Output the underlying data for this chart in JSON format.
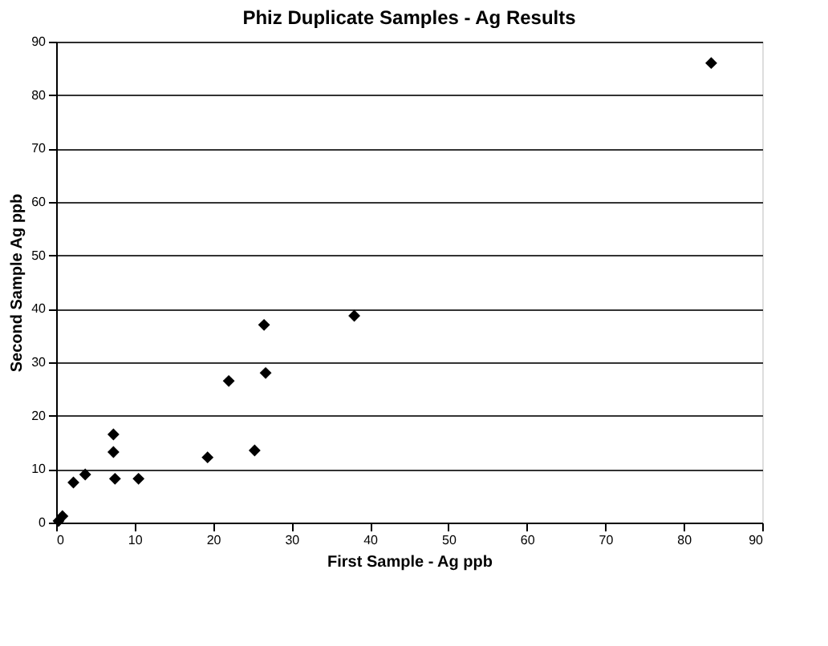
{
  "chart_data": {
    "type": "scatter",
    "title": "Phiz Duplicate Samples - Ag Results",
    "xlabel": "First Sample - Ag ppb",
    "ylabel": "Second Sample Ag ppb",
    "x": [
      0.3,
      0.8,
      2.2,
      3.7,
      7.3,
      7.3,
      7.5,
      10.5,
      19.3,
      22,
      25.3,
      26.5,
      26.7,
      38,
      83.5
    ],
    "series": [
      {
        "color": "#000000",
        "values": [
          0.3,
          1.2,
          7.5,
          9,
          16.5,
          13.2,
          8.2,
          8.2,
          12.2,
          26.5,
          13.5,
          37,
          28,
          38.7,
          86
        ]
      }
    ],
    "xlim": [
      0,
      90
    ],
    "ylim": [
      0,
      90
    ],
    "xticks": [
      0,
      10,
      20,
      30,
      40,
      50,
      60,
      70,
      80,
      90
    ],
    "yticks": [
      0,
      10,
      20,
      30,
      40,
      50,
      60,
      70,
      80,
      90
    ],
    "grid": "y",
    "marker": "diamond"
  }
}
